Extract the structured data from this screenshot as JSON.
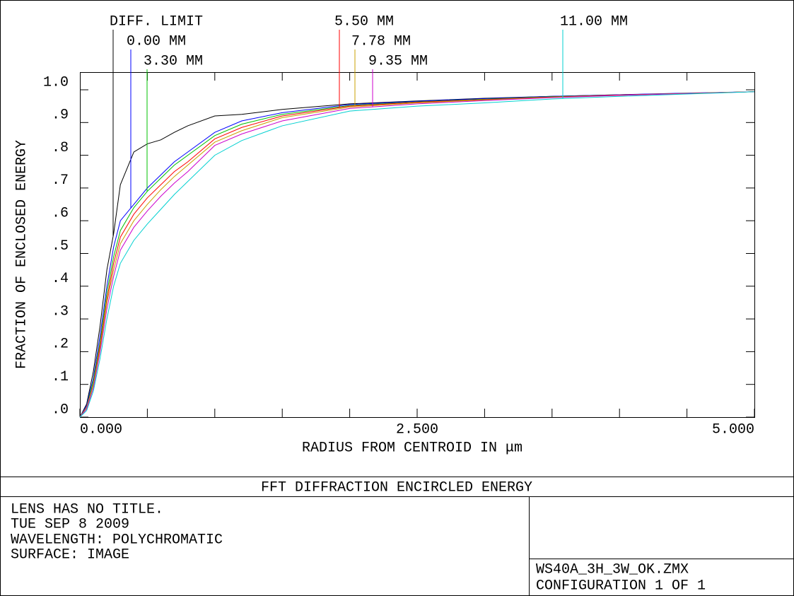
{
  "chart_data": {
    "type": "line",
    "title": "FFT DIFFRACTION ENCIRCLED ENERGY",
    "xlabel": "RADIUS FROM CENTROID IN μm",
    "ylabel": "FRACTION OF ENCLOSED ENERGY",
    "x": [
      0,
      0.05,
      0.1,
      0.15,
      0.2,
      0.25,
      0.3,
      0.4,
      0.5,
      0.6,
      0.7,
      0.8,
      1.0,
      1.2,
      1.5,
      2.0,
      2.5,
      3.0,
      3.5,
      4.0,
      4.5,
      5.0
    ],
    "series": [
      {
        "name": "DIFF. LIMIT",
        "color": "#000000",
        "values": [
          0,
          0.04,
          0.14,
          0.28,
          0.45,
          0.56,
          0.71,
          0.81,
          0.835,
          0.847,
          0.87,
          0.89,
          0.92,
          0.925,
          0.94,
          0.957,
          0.966,
          0.974,
          0.98,
          0.985,
          0.989,
          0.994
        ]
      },
      {
        "name": "0.00 MM",
        "color": "#0000ff",
        "values": [
          0,
          0.035,
          0.12,
          0.25,
          0.4,
          0.52,
          0.6,
          0.65,
          0.7,
          0.74,
          0.78,
          0.81,
          0.87,
          0.905,
          0.93,
          0.955,
          0.965,
          0.973,
          0.98,
          0.985,
          0.99,
          0.994
        ]
      },
      {
        "name": "3.30 MM",
        "color": "#00c000",
        "values": [
          0,
          0.03,
          0.11,
          0.23,
          0.38,
          0.49,
          0.57,
          0.64,
          0.69,
          0.73,
          0.77,
          0.8,
          0.86,
          0.895,
          0.925,
          0.952,
          0.963,
          0.971,
          0.979,
          0.984,
          0.989,
          0.994
        ]
      },
      {
        "name": "5.50 MM",
        "color": "#ff0000",
        "values": [
          0,
          0.03,
          0.1,
          0.22,
          0.36,
          0.47,
          0.55,
          0.62,
          0.67,
          0.71,
          0.75,
          0.78,
          0.85,
          0.885,
          0.92,
          0.95,
          0.962,
          0.97,
          0.978,
          0.984,
          0.989,
          0.994
        ]
      },
      {
        "name": "7.78 MM",
        "color": "#c8a000",
        "values": [
          0,
          0.03,
          0.1,
          0.21,
          0.35,
          0.45,
          0.53,
          0.6,
          0.65,
          0.695,
          0.735,
          0.77,
          0.84,
          0.875,
          0.915,
          0.947,
          0.96,
          0.969,
          0.977,
          0.983,
          0.989,
          0.994
        ]
      },
      {
        "name": "9.35 MM",
        "color": "#cc00cc",
        "values": [
          0,
          0.025,
          0.09,
          0.2,
          0.33,
          0.43,
          0.51,
          0.58,
          0.63,
          0.675,
          0.715,
          0.75,
          0.83,
          0.865,
          0.905,
          0.943,
          0.957,
          0.967,
          0.976,
          0.983,
          0.988,
          0.994
        ]
      },
      {
        "name": "11.00 MM",
        "color": "#00d0d0",
        "values": [
          0,
          0.02,
          0.08,
          0.18,
          0.3,
          0.4,
          0.47,
          0.54,
          0.59,
          0.635,
          0.68,
          0.72,
          0.8,
          0.845,
          0.89,
          0.935,
          0.95,
          0.96,
          0.972,
          0.98,
          0.987,
          0.994
        ]
      }
    ],
    "xlim": [
      0,
      5
    ],
    "xticks": [
      {
        "value": 0,
        "label": "0.000"
      },
      {
        "value": 2.5,
        "label": "2.500"
      },
      {
        "value": 5,
        "label": "5.000"
      }
    ],
    "ylim": [
      0,
      1.054
    ],
    "yticks": [
      {
        "value": 0,
        "label": ".0"
      },
      {
        "value": 0.1,
        "label": ".1"
      },
      {
        "value": 0.2,
        "label": ".2"
      },
      {
        "value": 0.3,
        "label": ".3"
      },
      {
        "value": 0.4,
        "label": ".4"
      },
      {
        "value": 0.5,
        "label": ".5"
      },
      {
        "value": 0.6,
        "label": ".6"
      },
      {
        "value": 0.7,
        "label": ".7"
      },
      {
        "value": 0.8,
        "label": ".8"
      },
      {
        "value": 0.9,
        "label": ".9"
      },
      {
        "value": 1,
        "label": "1.0"
      }
    ],
    "grid": false
  },
  "footer": {
    "info": [
      "LENS HAS NO TITLE.",
      "TUE SEP 8 2009",
      "WAVELENGTH: POLYCHROMATIC",
      "SURFACE: IMAGE"
    ],
    "file": [
      "WS40A_3H_3W_OK.ZMX",
      "CONFIGURATION 1 OF 1"
    ]
  }
}
